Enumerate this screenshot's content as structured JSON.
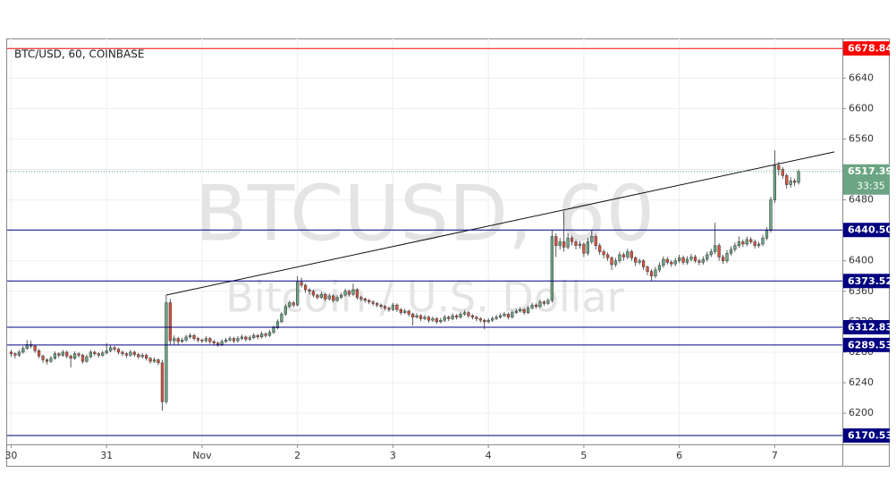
{
  "chart_data": {
    "type": "candlestick",
    "title": "BTC/USD, 60, COINBASE",
    "watermark": "BTCUSD, 60",
    "watermark_subtitle": "Bitcoin / U.S. Dollar",
    "up_color": "#6ba583",
    "down_color": "#d75442",
    "xlim": [
      -1,
      209
    ],
    "ylim": [
      6159,
      6692
    ],
    "xticks": [
      {
        "value": 0,
        "label": "30"
      },
      {
        "value": 24,
        "label": "31"
      },
      {
        "value": 48,
        "label": "Nov"
      },
      {
        "value": 72,
        "label": "2"
      },
      {
        "value": 96,
        "label": "3"
      },
      {
        "value": 120,
        "label": "4"
      },
      {
        "value": 144,
        "label": "5"
      },
      {
        "value": 168,
        "label": "6"
      },
      {
        "value": 192,
        "label": "7"
      }
    ],
    "yticks": [
      6200,
      6240,
      6280,
      6320,
      6360,
      6400,
      6440,
      6480,
      6520,
      6560,
      6600,
      6640
    ],
    "grid": true,
    "levels": [
      {
        "value": 6678.84,
        "color": "#ff0000"
      },
      {
        "value": {
          "value": 6440.5,
          "label": "6440.50"
        },
        "color": "#000080"
      },
      {
        "value": 6373.52,
        "color": "#000080"
      },
      {
        "value": 6312.83,
        "color": "#000080"
      },
      {
        "value": 6289.53,
        "color": "#000080"
      },
      {
        "value": 6170.53,
        "color": "#000080"
      }
    ],
    "last_price": {
      "value": 6517.39,
      "color": "#6ba583",
      "countdown": "33:35"
    },
    "trendline": {
      "x": [
        39,
        207
      ],
      "y": [
        6355,
        6543
      ]
    },
    "x": [
      0,
      1,
      2,
      3,
      4,
      5,
      6,
      7,
      8,
      9,
      10,
      11,
      12,
      13,
      14,
      15,
      16,
      17,
      18,
      19,
      20,
      21,
      22,
      23,
      24,
      25,
      26,
      27,
      28,
      29,
      30,
      31,
      32,
      33,
      34,
      35,
      36,
      37,
      38,
      39,
      40,
      41,
      42,
      43,
      44,
      45,
      46,
      47,
      48,
      49,
      50,
      51,
      52,
      53,
      54,
      55,
      56,
      57,
      58,
      59,
      60,
      61,
      62,
      63,
      64,
      65,
      66,
      67,
      68,
      69,
      70,
      71,
      72,
      73,
      74,
      75,
      76,
      77,
      78,
      79,
      80,
      81,
      82,
      83,
      84,
      85,
      86,
      87,
      88,
      89,
      90,
      91,
      92,
      93,
      94,
      95,
      96,
      97,
      98,
      99,
      100,
      101,
      102,
      103,
      104,
      105,
      106,
      107,
      108,
      109,
      110,
      111,
      112,
      113,
      114,
      115,
      116,
      117,
      118,
      119,
      120,
      121,
      122,
      123,
      124,
      125,
      126,
      127,
      128,
      129,
      130,
      131,
      132,
      133,
      134,
      135,
      136,
      137,
      138,
      139,
      140,
      141,
      142,
      143,
      144,
      145,
      146,
      147,
      148,
      149,
      150,
      151,
      152,
      153,
      154,
      155,
      156,
      157,
      158,
      159,
      160,
      161,
      162,
      163,
      164,
      165,
      166,
      167,
      168,
      169,
      170,
      171,
      172,
      173,
      174,
      175,
      176,
      177,
      178,
      179,
      180,
      181,
      182,
      183,
      184,
      185,
      186,
      187,
      188,
      189,
      190,
      191,
      192,
      193,
      194,
      195,
      196,
      197,
      198
    ],
    "candles": [
      [
        6280,
        6283,
        6274,
        6278
      ],
      [
        6278,
        6280,
        6272,
        6276
      ],
      [
        6276,
        6283,
        6274,
        6280
      ],
      [
        6280,
        6288,
        6278,
        6285
      ],
      [
        6285,
        6296,
        6283,
        6290
      ],
      [
        6290,
        6295,
        6285,
        6288
      ],
      [
        6288,
        6290,
        6279,
        6282
      ],
      [
        6282,
        6284,
        6272,
        6275
      ],
      [
        6275,
        6277,
        6266,
        6270
      ],
      [
        6270,
        6272,
        6264,
        6268
      ],
      [
        6268,
        6275,
        6266,
        6272
      ],
      [
        6272,
        6281,
        6270,
        6278
      ],
      [
        6278,
        6280,
        6273,
        6276
      ],
      [
        6276,
        6283,
        6274,
        6280
      ],
      [
        6280,
        6282,
        6272,
        6275
      ],
      [
        6275,
        6277,
        6260,
        6272
      ],
      [
        6272,
        6281,
        6270,
        6278
      ],
      [
        6278,
        6280,
        6273,
        6276
      ],
      [
        6276,
        6278,
        6265,
        6268
      ],
      [
        6268,
        6277,
        6266,
        6274
      ],
      [
        6274,
        6283,
        6272,
        6280
      ],
      [
        6280,
        6282,
        6275,
        6278
      ],
      [
        6278,
        6280,
        6273,
        6276
      ],
      [
        6276,
        6282,
        6274,
        6279
      ],
      [
        6279,
        6292,
        6277,
        6282
      ],
      [
        6282,
        6289,
        6280,
        6286
      ],
      [
        6286,
        6288,
        6281,
        6284
      ],
      [
        6284,
        6286,
        6277,
        6280
      ],
      [
        6280,
        6282,
        6275,
        6278
      ],
      [
        6278,
        6280,
        6273,
        6276
      ],
      [
        6276,
        6283,
        6274,
        6280
      ],
      [
        6280,
        6282,
        6274,
        6277
      ],
      [
        6277,
        6279,
        6271,
        6274
      ],
      [
        6274,
        6279,
        6272,
        6276
      ],
      [
        6276,
        6278,
        6269,
        6272
      ],
      [
        6272,
        6274,
        6265,
        6268
      ],
      [
        6268,
        6273,
        6266,
        6270
      ],
      [
        6270,
        6272,
        6263,
        6266
      ],
      [
        6266,
        6270,
        6203,
        6215
      ],
      [
        6215,
        6355,
        6212,
        6345
      ],
      [
        6345,
        6350,
        6290,
        6295
      ],
      [
        6295,
        6302,
        6290,
        6298
      ],
      [
        6298,
        6300,
        6290,
        6294
      ],
      [
        6294,
        6299,
        6292,
        6296
      ],
      [
        6296,
        6303,
        6294,
        6300
      ],
      [
        6300,
        6305,
        6298,
        6302
      ],
      [
        6302,
        6304,
        6295,
        6298
      ],
      [
        6298,
        6300,
        6293,
        6296
      ],
      [
        6296,
        6298,
        6292,
        6295
      ],
      [
        6295,
        6301,
        6293,
        6298
      ],
      [
        6298,
        6300,
        6291,
        6294
      ],
      [
        6294,
        6296,
        6289,
        6292
      ],
      [
        6292,
        6294,
        6287,
        6290
      ],
      [
        6290,
        6297,
        6288,
        6294
      ],
      [
        6294,
        6299,
        6292,
        6296
      ],
      [
        6296,
        6301,
        6294,
        6298
      ],
      [
        6298,
        6300,
        6292,
        6295
      ],
      [
        6295,
        6301,
        6293,
        6298
      ],
      [
        6298,
        6303,
        6296,
        6300
      ],
      [
        6300,
        6302,
        6294,
        6297
      ],
      [
        6297,
        6302,
        6295,
        6299
      ],
      [
        6299,
        6305,
        6297,
        6302
      ],
      [
        6302,
        6304,
        6297,
        6300
      ],
      [
        6300,
        6307,
        6298,
        6304
      ],
      [
        6304,
        6306,
        6299,
        6302
      ],
      [
        6302,
        6309,
        6300,
        6306
      ],
      [
        6306,
        6315,
        6304,
        6312
      ],
      [
        6312,
        6323,
        6310,
        6320
      ],
      [
        6320,
        6333,
        6318,
        6330
      ],
      [
        6330,
        6343,
        6328,
        6340
      ],
      [
        6340,
        6348,
        6338,
        6345
      ],
      [
        6345,
        6347,
        6339,
        6342
      ],
      [
        6342,
        6380,
        6340,
        6372
      ],
      [
        6372,
        6378,
        6365,
        6368
      ],
      [
        6368,
        6370,
        6358,
        6362
      ],
      [
        6362,
        6364,
        6356,
        6360
      ],
      [
        6360,
        6362,
        6352,
        6355
      ],
      [
        6355,
        6357,
        6349,
        6352
      ],
      [
        6352,
        6359,
        6350,
        6356
      ],
      [
        6356,
        6358,
        6347,
        6350
      ],
      [
        6350,
        6357,
        6348,
        6354
      ],
      [
        6354,
        6356,
        6345,
        6348
      ],
      [
        6348,
        6355,
        6346,
        6352
      ],
      [
        6352,
        6358,
        6350,
        6355
      ],
      [
        6355,
        6363,
        6353,
        6360
      ],
      [
        6360,
        6362,
        6353,
        6356
      ],
      [
        6356,
        6370,
        6354,
        6362
      ],
      [
        6362,
        6364,
        6349,
        6352
      ],
      [
        6352,
        6354,
        6347,
        6350
      ],
      [
        6350,
        6352,
        6345,
        6348
      ],
      [
        6348,
        6350,
        6343,
        6346
      ],
      [
        6346,
        6348,
        6341,
        6344
      ],
      [
        6344,
        6346,
        6339,
        6342
      ],
      [
        6342,
        6344,
        6337,
        6340
      ],
      [
        6340,
        6342,
        6335,
        6338
      ],
      [
        6338,
        6340,
        6333,
        6336
      ],
      [
        6336,
        6345,
        6334,
        6342
      ],
      [
        6342,
        6344,
        6333,
        6336
      ],
      [
        6336,
        6338,
        6329,
        6332
      ],
      [
        6332,
        6337,
        6330,
        6334
      ],
      [
        6334,
        6336,
        6327,
        6330
      ],
      [
        6330,
        6332,
        6315,
        6326
      ],
      [
        6326,
        6331,
        6324,
        6328
      ],
      [
        6328,
        6330,
        6321,
        6324
      ],
      [
        6324,
        6329,
        6322,
        6326
      ],
      [
        6326,
        6328,
        6319,
        6322
      ],
      [
        6322,
        6327,
        6320,
        6324
      ],
      [
        6324,
        6326,
        6317,
        6320
      ],
      [
        6320,
        6325,
        6318,
        6322
      ],
      [
        6322,
        6329,
        6320,
        6326
      ],
      [
        6326,
        6328,
        6321,
        6324
      ],
      [
        6324,
        6331,
        6322,
        6328
      ],
      [
        6328,
        6330,
        6323,
        6326
      ],
      [
        6326,
        6333,
        6324,
        6330
      ],
      [
        6330,
        6335,
        6328,
        6332
      ],
      [
        6332,
        6334,
        6325,
        6328
      ],
      [
        6328,
        6330,
        6323,
        6326
      ],
      [
        6326,
        6328,
        6321,
        6324
      ],
      [
        6324,
        6326,
        6319,
        6322
      ],
      [
        6322,
        6324,
        6310,
        6320
      ],
      [
        6320,
        6325,
        6318,
        6322
      ],
      [
        6322,
        6327,
        6320,
        6324
      ],
      [
        6324,
        6329,
        6322,
        6326
      ],
      [
        6326,
        6331,
        6324,
        6328
      ],
      [
        6328,
        6333,
        6326,
        6330
      ],
      [
        6330,
        6332,
        6323,
        6326
      ],
      [
        6326,
        6335,
        6324,
        6332
      ],
      [
        6332,
        6337,
        6330,
        6334
      ],
      [
        6334,
        6339,
        6332,
        6336
      ],
      [
        6336,
        6338,
        6329,
        6332
      ],
      [
        6332,
        6341,
        6330,
        6338
      ],
      [
        6338,
        6345,
        6336,
        6342
      ],
      [
        6342,
        6344,
        6337,
        6340
      ],
      [
        6340,
        6349,
        6338,
        6346
      ],
      [
        6346,
        6348,
        6341,
        6344
      ],
      [
        6344,
        6351,
        6342,
        6348
      ],
      [
        6348,
        6440,
        6345,
        6432
      ],
      [
        6432,
        6436,
        6405,
        6420
      ],
      [
        6420,
        6430,
        6415,
        6425
      ],
      [
        6425,
        6465,
        6412,
        6418
      ],
      [
        6418,
        6436,
        6415,
        6430
      ],
      [
        6430,
        6433,
        6420,
        6425
      ],
      [
        6425,
        6428,
        6415,
        6420
      ],
      [
        6420,
        6426,
        6416,
        6422
      ],
      [
        6422,
        6424,
        6405,
        6410
      ],
      [
        6410,
        6430,
        6407,
        6425
      ],
      [
        6425,
        6440,
        6422,
        6432
      ],
      [
        6432,
        6435,
        6415,
        6420
      ],
      [
        6420,
        6423,
        6408,
        6412
      ],
      [
        6412,
        6415,
        6403,
        6408
      ],
      [
        6408,
        6411,
        6400,
        6404
      ],
      [
        6404,
        6406,
        6388,
        6395
      ],
      [
        6395,
        6404,
        6392,
        6400
      ],
      [
        6400,
        6412,
        6397,
        6408
      ],
      [
        6408,
        6411,
        6400,
        6405
      ],
      [
        6405,
        6416,
        6402,
        6412
      ],
      [
        6412,
        6415,
        6400,
        6404
      ],
      [
        6404,
        6406,
        6393,
        6398
      ],
      [
        6398,
        6403,
        6395,
        6400
      ],
      [
        6400,
        6402,
        6388,
        6392
      ],
      [
        6392,
        6394,
        6381,
        6386
      ],
      [
        6386,
        6389,
        6374,
        6380
      ],
      [
        6380,
        6392,
        6377,
        6388
      ],
      [
        6388,
        6398,
        6385,
        6394
      ],
      [
        6394,
        6406,
        6391,
        6402
      ],
      [
        6402,
        6405,
        6395,
        6398
      ],
      [
        6398,
        6401,
        6392,
        6396
      ],
      [
        6396,
        6404,
        6393,
        6400
      ],
      [
        6400,
        6408,
        6397,
        6404
      ],
      [
        6404,
        6407,
        6395,
        6398
      ],
      [
        6398,
        6406,
        6395,
        6402
      ],
      [
        6402,
        6409,
        6399,
        6405
      ],
      [
        6405,
        6408,
        6397,
        6400
      ],
      [
        6400,
        6403,
        6394,
        6398
      ],
      [
        6398,
        6406,
        6395,
        6402
      ],
      [
        6402,
        6412,
        6399,
        6408
      ],
      [
        6408,
        6416,
        6405,
        6412
      ],
      [
        6412,
        6450,
        6409,
        6420
      ],
      [
        6420,
        6423,
        6400,
        6405
      ],
      [
        6405,
        6408,
        6396,
        6400
      ],
      [
        6400,
        6414,
        6397,
        6410
      ],
      [
        6410,
        6419,
        6407,
        6415
      ],
      [
        6415,
        6424,
        6412,
        6420
      ],
      [
        6420,
        6432,
        6417,
        6425
      ],
      [
        6425,
        6428,
        6418,
        6422
      ],
      [
        6422,
        6432,
        6419,
        6428
      ],
      [
        6428,
        6431,
        6422,
        6425
      ],
      [
        6425,
        6428,
        6416,
        6420
      ],
      [
        6420,
        6425,
        6417,
        6422
      ],
      [
        6422,
        6434,
        6419,
        6430
      ],
      [
        6430,
        6444,
        6427,
        6440
      ],
      [
        6440,
        6484,
        6437,
        6480
      ],
      [
        6480,
        6545,
        6476,
        6525
      ],
      [
        6525,
        6530,
        6512,
        6520
      ],
      [
        6520,
        6523,
        6508,
        6512
      ],
      [
        6512,
        6515,
        6495,
        6500
      ],
      [
        6500,
        6510,
        6496,
        6505
      ],
      [
        6505,
        6508,
        6498,
        6503
      ],
      [
        6503,
        6520,
        6500,
        6517.39
      ]
    ]
  }
}
